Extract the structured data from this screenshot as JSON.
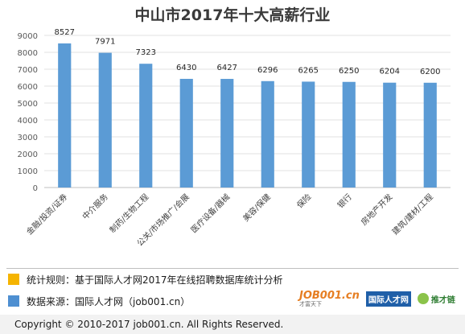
{
  "chart_data": {
    "type": "bar",
    "title": "中山市2017年十大高薪行业",
    "categories": [
      "金融/投资/证券",
      "中介服务",
      "制药/生物工程",
      "公关/市场推广/会展",
      "医疗设备/器械",
      "美容/保健",
      "保险",
      "银行",
      "房地产开发",
      "建筑/建材/工程"
    ],
    "values": [
      8527,
      7971,
      7323,
      6430,
      6427,
      6296,
      6265,
      6250,
      6204,
      6200
    ],
    "ylim": [
      0,
      9000
    ],
    "yticks": [
      0,
      1000,
      2000,
      3000,
      4000,
      5000,
      6000,
      7000,
      8000,
      9000
    ],
    "xlabel": "",
    "ylabel": "",
    "grid": true,
    "bar_color": "#5b9bd5"
  },
  "notes": [
    {
      "text": "统计规则：基于国际人才网2017年在线招聘数据库统计分析",
      "color": "#f5b400"
    },
    {
      "text": "数据来源：国际人才网（job001.cn）",
      "color": "#4e8fd1"
    }
  ],
  "logos": {
    "job001": "JOB001.cn",
    "job001_sub": "才富天下",
    "gjrc": "国际人才网",
    "tcl": "推才链"
  },
  "copyright": "Copyright © 2010-2017 job001.cn. All Rights Reserved."
}
